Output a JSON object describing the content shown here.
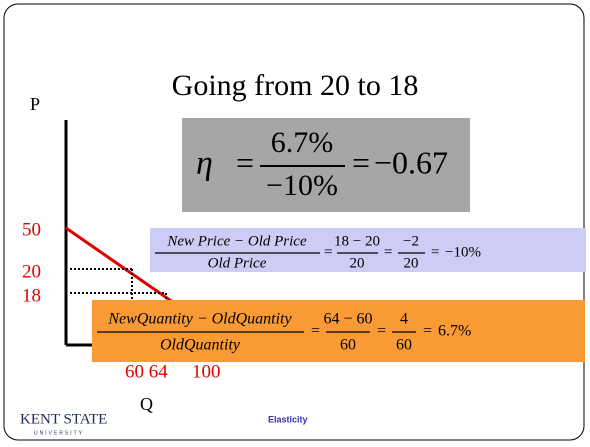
{
  "title": "Going from 20 to 18",
  "axes": {
    "y_label": "P",
    "x_label": "Q",
    "y_ticks": [
      "50",
      "20",
      "18"
    ],
    "x_ticks": [
      "60 64",
      "100"
    ]
  },
  "symbols": {
    "equals": "="
  },
  "elasticity": {
    "symbol": "η",
    "numerator": "6.7%",
    "denominator": "−10%",
    "result": "−0.67"
  },
  "price_change": {
    "numerator": "New Price − Old Price",
    "denominator": "Old Price",
    "step1_numerator": "18 − 20",
    "step1_denominator": "20",
    "step2_numerator": "−2",
    "step2_denominator": "20",
    "result": "−10%"
  },
  "quantity_change": {
    "numerator": "NewQuantity − OldQuantity",
    "denominator": "OldQuantity",
    "step1_numerator": "64 − 60",
    "step1_denominator": "60",
    "step2_numerator": "4",
    "step2_denominator": "60",
    "result": "6.7%"
  },
  "footer": {
    "logo": "KENT STATE",
    "logo_sub": "UNIVERSITY",
    "label": "Elasticity"
  }
}
